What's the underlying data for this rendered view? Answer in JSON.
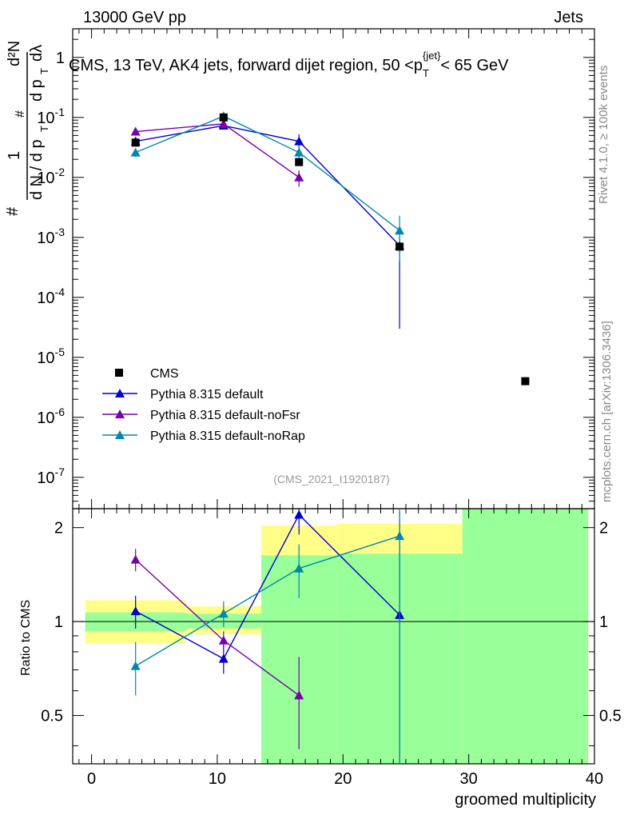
{
  "header": {
    "left": "13000 GeV pp",
    "right": "Jets"
  },
  "side_labels": {
    "rivet": "Rivet 4.1.0, ≥ 100k events",
    "mcplots": "mcplots.cern.ch [arXiv:1306.3436]"
  },
  "chart_data": {
    "type": "scatter",
    "title": "CMS, 13 TeV, AK4 jets, forward dijet region, 50 <p_T^{jet}< 65 GeV",
    "title_parts": {
      "pre": "CMS, 13 TeV, AK4 jets, forward dijet region, 50 <p",
      "sub": "T",
      "sup": "{jet}",
      "post": "< 65 GeV"
    },
    "watermark": "(CMS_2021_I1920187)",
    "xlabel": "groomed multiplicity",
    "ylabel_parts": {
      "numer_one": "1",
      "hash": "#",
      "d2N": "d²N",
      "dN": "d N / d p",
      "T": "T",
      "dp": "d p",
      "dlam": "dλ",
      "full": "1/(dN/dp_T) dN²/(dp_T dλ)"
    },
    "ratio_ylabel": "Ratio to CMS",
    "xlim": [
      -1.5,
      40
    ],
    "ylim_log": [
      3e-08,
      3
    ],
    "ratio_ylim": [
      0.35,
      2.3
    ],
    "x_ticks": [
      "0",
      "10",
      "20",
      "30",
      "40"
    ],
    "y_ticks": [
      "10^{-7}",
      "10^{-6}",
      "10^{-5}",
      "10^{-4}",
      "10^{-3}",
      "10^{-2}",
      "10^{-1}",
      "1"
    ],
    "ratio_ticks": [
      "0.5",
      "1",
      "2"
    ],
    "legend": {
      "position": "lower-left",
      "entries": [
        "CMS",
        "Pythia 8.315 default",
        "Pythia 8.315 default-noFsr",
        "Pythia 8.315 default-noRap"
      ]
    },
    "data": {
      "name": "CMS",
      "color": "#000000",
      "x": [
        3.5,
        10.5,
        16.5,
        24.5,
        34.5
      ],
      "y": [
        0.038,
        0.1,
        0.018,
        0.0007,
        4e-06
      ]
    },
    "series": [
      {
        "name": "Pythia 8.315 default",
        "color": "#0000cc",
        "x": [
          3.5,
          10.5,
          16.5,
          24.5
        ],
        "y": [
          0.04,
          0.073,
          0.04,
          0.00073
        ],
        "yerr_lo": [
          0.005,
          0.007,
          0.01,
          0.0007
        ],
        "yerr_hi": [
          0.005,
          0.007,
          0.012,
          0.0003
        ],
        "ratio": [
          1.08,
          0.76,
          2.2,
          1.05
        ],
        "ratio_err": [
          0.13,
          0.08,
          0.3,
          1.2
        ]
      },
      {
        "name": "Pythia 8.315 default-noFsr",
        "color": "#7700aa",
        "x": [
          3.5,
          10.5,
          16.5
        ],
        "y": [
          0.058,
          0.078,
          0.01
        ],
        "yerr_lo": [
          0.005,
          0.007,
          0.003
        ],
        "yerr_hi": [
          0.005,
          0.007,
          0.003
        ],
        "ratio": [
          1.58,
          0.87,
          0.58
        ],
        "ratio_err": [
          0.13,
          0.06,
          0.19
        ]
      },
      {
        "name": "Pythia 8.315 default-noRap",
        "color": "#0088aa",
        "x": [
          3.5,
          10.5,
          16.5,
          24.5
        ],
        "y": [
          0.026,
          0.105,
          0.026,
          0.0013
        ],
        "yerr_lo": [
          0.004,
          0.008,
          0.008,
          0.0009
        ],
        "yerr_hi": [
          0.004,
          0.008,
          0.008,
          0.001
        ],
        "ratio": [
          0.72,
          1.06,
          1.48,
          1.88
        ],
        "ratio_err": [
          0.14,
          0.1,
          0.29,
          1.6
        ]
      }
    ],
    "bands": [
      {
        "x0": -0.5,
        "x1": 7.5,
        "green": [
          0.93,
          1.07
        ],
        "yellow": [
          0.85,
          1.17
        ]
      },
      {
        "x0": 7.5,
        "x1": 13.5,
        "green": [
          0.95,
          1.06
        ],
        "yellow": [
          0.91,
          1.12
        ]
      },
      {
        "x0": 13.5,
        "x1": 19.5,
        "green": [
          0.35,
          1.63
        ],
        "yellow": [
          0.35,
          2.03
        ]
      },
      {
        "x0": 19.5,
        "x1": 29.5,
        "green": [
          0.35,
          1.65
        ],
        "yellow": [
          0.35,
          2.06
        ]
      },
      {
        "x0": 29.5,
        "x1": 39.5,
        "green": [
          0.35,
          2.3
        ],
        "yellow": [
          0.35,
          2.3
        ]
      }
    ]
  }
}
